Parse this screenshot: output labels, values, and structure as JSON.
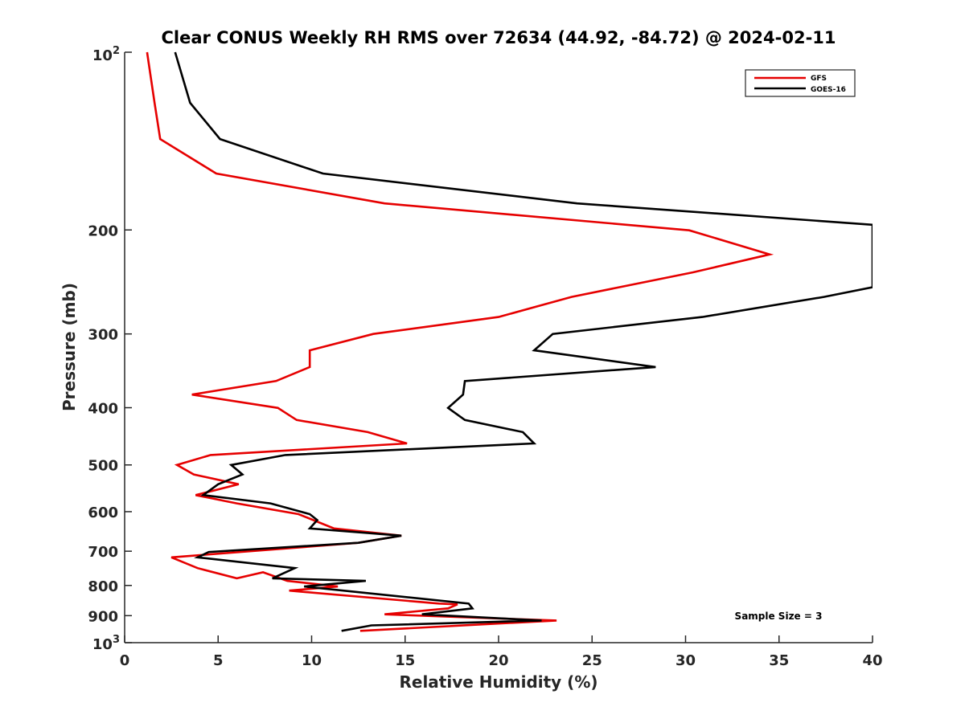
{
  "chart_data": {
    "type": "line",
    "title": "Clear CONUS Weekly RH RMS over 72634 (44.92, -84.72) @ 2024-02-11",
    "xlabel": "Relative Humidity (%)",
    "ylabel": "Pressure (mb)",
    "xlim": [
      0,
      40
    ],
    "ylim": [
      100,
      1000
    ],
    "yscale": "log",
    "yreversed": true,
    "grid": false,
    "xticks": [
      0,
      5,
      10,
      15,
      20,
      25,
      30,
      35,
      40
    ],
    "xtick_labels": [
      "0",
      "5",
      "10",
      "15",
      "20",
      "25",
      "30",
      "35",
      "40"
    ],
    "yticks": [
      100,
      200,
      300,
      400,
      500,
      600,
      700,
      800,
      900,
      1000
    ],
    "ytick_labels": [
      {
        "base": "10",
        "exp": "2"
      },
      {
        "base": "200"
      },
      {
        "base": "300"
      },
      {
        "base": "400"
      },
      {
        "base": "500"
      },
      {
        "base": "600"
      },
      {
        "base": "700"
      },
      {
        "base": "800"
      },
      {
        "base": "900"
      },
      {
        "base": "10",
        "exp": "3"
      }
    ],
    "legend": {
      "position": "top-right",
      "entries": [
        "GFS",
        "GOES-16"
      ]
    },
    "annotation": "Sample Size = 3",
    "series": [
      {
        "name": "GFS",
        "color": "#e60000",
        "points": [
          [
            100,
            1.2
          ],
          [
            121.8,
            1.6
          ],
          [
            140.3,
            1.9
          ],
          [
            160.5,
            4.9
          ],
          [
            180.3,
            13.9
          ],
          [
            200.3,
            30.2
          ],
          [
            220.0,
            34.5
          ],
          [
            235.9,
            30.4
          ],
          [
            259.7,
            23.9
          ],
          [
            280.8,
            20.0
          ],
          [
            300.0,
            13.3
          ],
          [
            319.8,
            9.9
          ],
          [
            341.4,
            9.9
          ],
          [
            360.5,
            8.1
          ],
          [
            380.1,
            3.6
          ],
          [
            400.3,
            8.2
          ],
          [
            419.6,
            9.2
          ],
          [
            440.0,
            13.0
          ],
          [
            459.8,
            15.1
          ],
          [
            481.0,
            4.6
          ],
          [
            500.1,
            2.8
          ],
          [
            519.0,
            3.7
          ],
          [
            539.2,
            6.1
          ],
          [
            562.5,
            3.8
          ],
          [
            580.8,
            6.0
          ],
          [
            605.8,
            9.3
          ],
          [
            640.6,
            11.2
          ],
          [
            658.9,
            14.8
          ],
          [
            677.4,
            12.5
          ],
          [
            717.0,
            2.5
          ],
          [
            747.7,
            3.9
          ],
          [
            778.1,
            6.0
          ],
          [
            760.0,
            7.4
          ],
          [
            785.8,
            8.7
          ],
          [
            803.4,
            11.4
          ],
          [
            816.4,
            8.8
          ],
          [
            858.4,
            16.8
          ],
          [
            861.1,
            17.8
          ],
          [
            874.9,
            17.3
          ],
          [
            895.2,
            13.9
          ],
          [
            897.8,
            14.9
          ],
          [
            917.3,
            23.1
          ],
          [
            955.0,
            12.6
          ]
        ]
      },
      {
        "name": "GOES-16",
        "color": "#000000",
        "points": [
          [
            100,
            2.7
          ],
          [
            121.8,
            3.5
          ],
          [
            140.3,
            5.1
          ],
          [
            160.5,
            10.6
          ],
          [
            180.3,
            24.2
          ],
          [
            196.0,
            40.0
          ],
          [
            250.0,
            40.0
          ],
          [
            259.7,
            37.4
          ],
          [
            280.8,
            30.9
          ],
          [
            300.0,
            22.9
          ],
          [
            319.8,
            21.9
          ],
          [
            341.4,
            28.4
          ],
          [
            360.5,
            18.2
          ],
          [
            380.1,
            18.1
          ],
          [
            400.3,
            17.3
          ],
          [
            419.6,
            18.2
          ],
          [
            440.0,
            21.3
          ],
          [
            459.8,
            21.9
          ],
          [
            481.0,
            8.6
          ],
          [
            500.1,
            5.7
          ],
          [
            519.0,
            6.3
          ],
          [
            539.2,
            5.0
          ],
          [
            562.5,
            4.2
          ],
          [
            580.8,
            7.8
          ],
          [
            605.8,
            9.9
          ],
          [
            620.0,
            10.3
          ],
          [
            640.6,
            9.9
          ],
          [
            658.9,
            14.8
          ],
          [
            677.4,
            12.5
          ],
          [
            702.0,
            4.5
          ],
          [
            717.0,
            3.9
          ],
          [
            747.7,
            9.1
          ],
          [
            778.1,
            7.9
          ],
          [
            785.8,
            12.9
          ],
          [
            803.4,
            9.6
          ],
          [
            858.4,
            18.4
          ],
          [
            874.9,
            18.6
          ],
          [
            895.2,
            15.9
          ],
          [
            917.3,
            22.3
          ],
          [
            935.0,
            13.2
          ],
          [
            955.0,
            11.6
          ]
        ]
      }
    ]
  }
}
